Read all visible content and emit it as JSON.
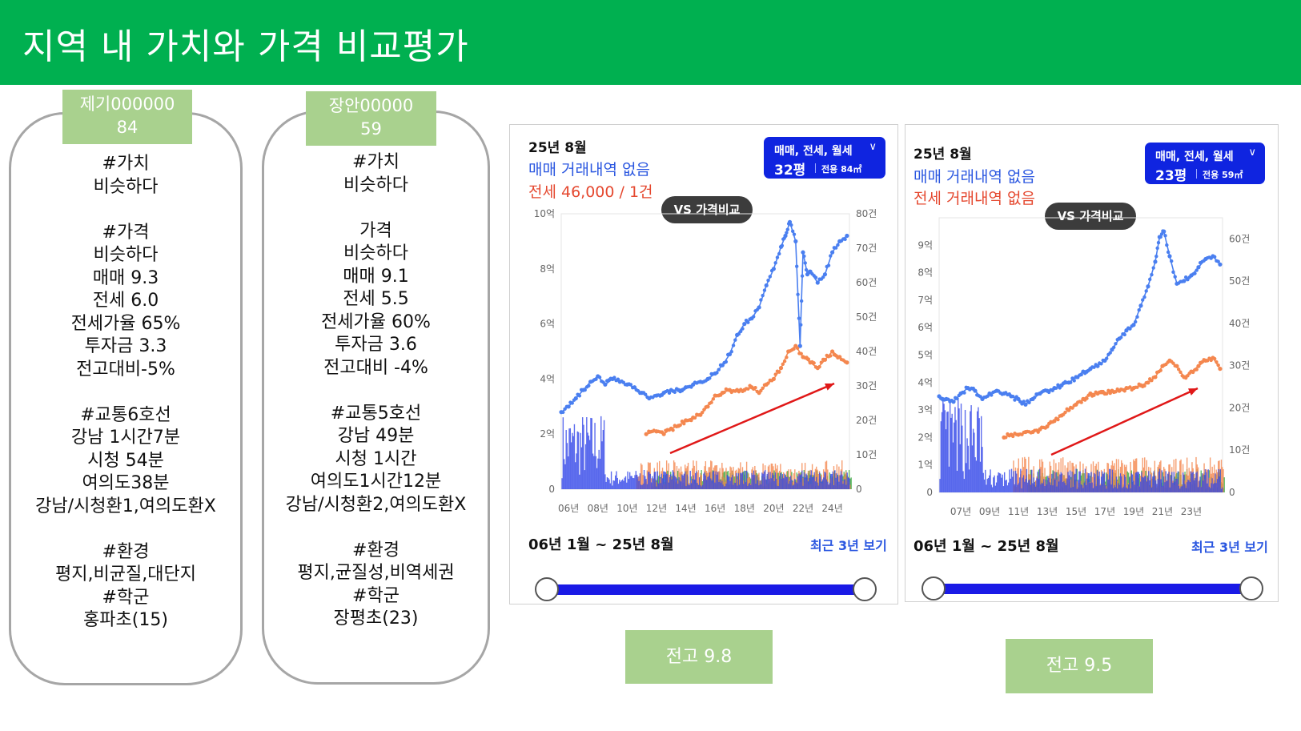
{
  "header": {
    "title": "지역 내 가치와 가격 비교평가"
  },
  "cards": [
    {
      "tag_line1": "제기000000",
      "tag_line2": "84",
      "body": "#가치\n비슷하다\n\n#가격\n비슷하다\n매매 9.3\n전세 6.0\n전세가율 65%\n투자금 3.3\n전고대비-5%\n\n#교통6호선\n강남 1시간7분\n시청 54분\n여의도38분\n강남/시청환1,여의도환X\n\n#환경\n평지,비균질,대단지\n#학군\n홍파초(15)"
    },
    {
      "tag_line1": "장안00000",
      "tag_line2": "59",
      "body": "#가치\n비슷하다\n\n가격\n비슷하다\n매매 9.1\n전세 5.5\n전세가율 60%\n투자금 3.6\n전고대비 -4%\n\n#교통5호선\n강남 49분\n시청 1시간\n여의도1시간12분\n강남/시청환2,여의도환X\n\n#환경\n평지,균질성,비역세권\n#학군\n장평초(23)"
    }
  ],
  "panels": [
    {
      "date": "25년 8월",
      "sale_text": "매매 거래내역 없음",
      "jeonse_text": "전세 46,000 / 1건",
      "filter": {
        "types": "매매, 전세, 월세",
        "size": "32평",
        "area": "전용 84㎡"
      },
      "vs_label": "VS 가격비교",
      "range_label": "06년 1월 ~ 25년 8월",
      "recent_label": "최근 3년 보기"
    },
    {
      "date": "25년 8월",
      "sale_text": "매매 거래내역 없음",
      "jeonse_text": "전세 거래내역 없음",
      "filter": {
        "types": "매매, 전세, 월세",
        "size": "23평",
        "area": "전용 59㎡"
      },
      "vs_label": "VS 가격비교",
      "range_label": "06년 1월 ~ 25년 8월",
      "recent_label": "최근 3년 보기"
    }
  ],
  "scores": [
    {
      "label": "전고 9.8"
    },
    {
      "label": "전고 9.5"
    }
  ],
  "colors": {
    "sale": "#4a7ff0",
    "jeonse": "#f4874f",
    "monthly": "#3daa3d",
    "volume_sale": "#3347e8",
    "trend_arrow": "#e01818"
  },
  "chart_data": [
    {
      "type": "line",
      "title": "",
      "x_ticks": [
        "06년",
        "08년",
        "10년",
        "12년",
        "14년",
        "16년",
        "18년",
        "20년",
        "22년",
        "24년"
      ],
      "x_range": [
        2006,
        2025.67
      ],
      "y_left_ticks": [
        "0",
        "2억",
        "4억",
        "6억",
        "8억",
        "10억"
      ],
      "y_left_range": [
        0,
        10
      ],
      "y_right_ticks": [
        "0",
        "10건",
        "20건",
        "30건",
        "40건",
        "50건",
        "60건",
        "70건",
        "80건"
      ],
      "y_right_range": [
        0,
        80
      ],
      "legend": "none",
      "series": [
        {
          "kind": "sale",
          "unit": "억",
          "x": [
            2006.0,
            2006.5,
            2007.0,
            2007.5,
            2008.0,
            2008.5,
            2009.0,
            2009.5,
            2010.0,
            2010.5,
            2011.0,
            2011.5,
            2012.0,
            2012.5,
            2013.0,
            2013.5,
            2014.0,
            2014.5,
            2015.0,
            2015.5,
            2016.0,
            2016.5,
            2017.0,
            2017.5,
            2018.0,
            2018.5,
            2019.0,
            2019.5,
            2020.0,
            2020.5,
            2021.0,
            2021.3,
            2021.6,
            2022.0,
            2022.3,
            2022.5,
            2022.8,
            2023.0,
            2023.5,
            2024.0,
            2024.5,
            2025.0,
            2025.5
          ],
          "y": [
            2.8,
            3.0,
            3.3,
            3.6,
            3.9,
            4.1,
            3.8,
            4.0,
            3.9,
            3.8,
            3.7,
            3.5,
            3.3,
            3.4,
            3.5,
            3.6,
            3.6,
            3.7,
            3.8,
            3.9,
            4.0,
            4.2,
            4.5,
            4.9,
            5.6,
            6.0,
            6.2,
            6.6,
            7.4,
            8.0,
            8.8,
            9.2,
            9.7,
            9.0,
            5.2,
            8.6,
            7.8,
            7.9,
            7.5,
            7.8,
            8.6,
            9.0,
            9.2
          ]
        },
        {
          "kind": "jeonse",
          "unit": "억",
          "x": [
            2011.8,
            2012.5,
            2013.0,
            2013.5,
            2014.0,
            2014.5,
            2015.0,
            2015.5,
            2016.0,
            2016.5,
            2017.0,
            2017.5,
            2018.0,
            2018.5,
            2019.0,
            2019.5,
            2020.0,
            2020.5,
            2021.0,
            2021.5,
            2022.0,
            2022.5,
            2023.0,
            2023.5,
            2024.0,
            2024.5,
            2025.0,
            2025.5
          ],
          "y": [
            2.0,
            2.1,
            2.0,
            2.2,
            2.3,
            2.5,
            2.6,
            2.7,
            3.0,
            3.4,
            3.5,
            3.6,
            3.6,
            3.6,
            3.7,
            3.5,
            3.8,
            4.0,
            4.4,
            5.0,
            5.2,
            4.8,
            4.6,
            4.4,
            4.7,
            5.0,
            4.8,
            4.6
          ]
        }
      ]
    },
    {
      "type": "line",
      "title": "",
      "x_ticks": [
        "07년",
        "09년",
        "11년",
        "13년",
        "15년",
        "17년",
        "19년",
        "21년",
        "23년"
      ],
      "x_range": [
        2006,
        2025.67
      ],
      "y_left_ticks": [
        "0",
        "1억",
        "2억",
        "3억",
        "4억",
        "5억",
        "6억",
        "7억",
        "8억",
        "9억"
      ],
      "y_left_range": [
        0,
        10
      ],
      "y_right_ticks": [
        "0",
        "10건",
        "20건",
        "30건",
        "40건",
        "50건",
        "60건"
      ],
      "y_right_range": [
        0,
        65
      ],
      "legend": "none",
      "series": [
        {
          "kind": "sale",
          "unit": "억",
          "x": [
            2006.0,
            2006.5,
            2007.0,
            2007.5,
            2008.0,
            2008.5,
            2009.0,
            2009.5,
            2010.0,
            2010.5,
            2011.0,
            2011.5,
            2012.0,
            2012.5,
            2013.0,
            2013.5,
            2014.0,
            2014.5,
            2015.0,
            2015.5,
            2016.0,
            2016.5,
            2017.0,
            2017.5,
            2018.0,
            2018.5,
            2019.0,
            2019.5,
            2020.0,
            2020.5,
            2021.0,
            2021.3,
            2021.6,
            2022.0,
            2022.5,
            2023.0,
            2023.5,
            2024.0,
            2024.5,
            2025.0,
            2025.5
          ],
          "y": [
            3.5,
            3.4,
            3.3,
            3.6,
            3.8,
            3.7,
            3.4,
            3.6,
            3.7,
            3.6,
            3.5,
            3.4,
            3.2,
            3.4,
            3.6,
            3.7,
            3.8,
            3.9,
            4.0,
            4.2,
            4.4,
            4.5,
            4.6,
            4.8,
            5.2,
            5.6,
            5.9,
            6.1,
            6.8,
            7.5,
            8.4,
            9.3,
            9.5,
            8.6,
            7.6,
            7.7,
            7.9,
            8.2,
            8.5,
            8.6,
            8.3
          ]
        },
        {
          "kind": "jeonse",
          "unit": "억",
          "x": [
            2010.5,
            2011.0,
            2011.5,
            2012.0,
            2012.5,
            2013.0,
            2013.5,
            2014.0,
            2014.5,
            2015.0,
            2015.5,
            2016.0,
            2016.5,
            2017.0,
            2017.5,
            2018.0,
            2018.5,
            2019.0,
            2019.5,
            2020.0,
            2020.5,
            2021.0,
            2021.5,
            2022.0,
            2022.5,
            2023.0,
            2023.5,
            2024.0,
            2024.5,
            2025.0,
            2025.5
          ],
          "y": [
            2.0,
            2.1,
            2.1,
            2.2,
            2.2,
            2.3,
            2.4,
            2.6,
            2.8,
            3.0,
            3.2,
            3.4,
            3.6,
            3.6,
            3.6,
            3.7,
            3.7,
            3.8,
            3.8,
            3.9,
            4.0,
            4.2,
            4.6,
            4.8,
            4.6,
            4.2,
            4.4,
            4.6,
            4.8,
            4.9,
            4.5
          ]
        }
      ]
    }
  ]
}
